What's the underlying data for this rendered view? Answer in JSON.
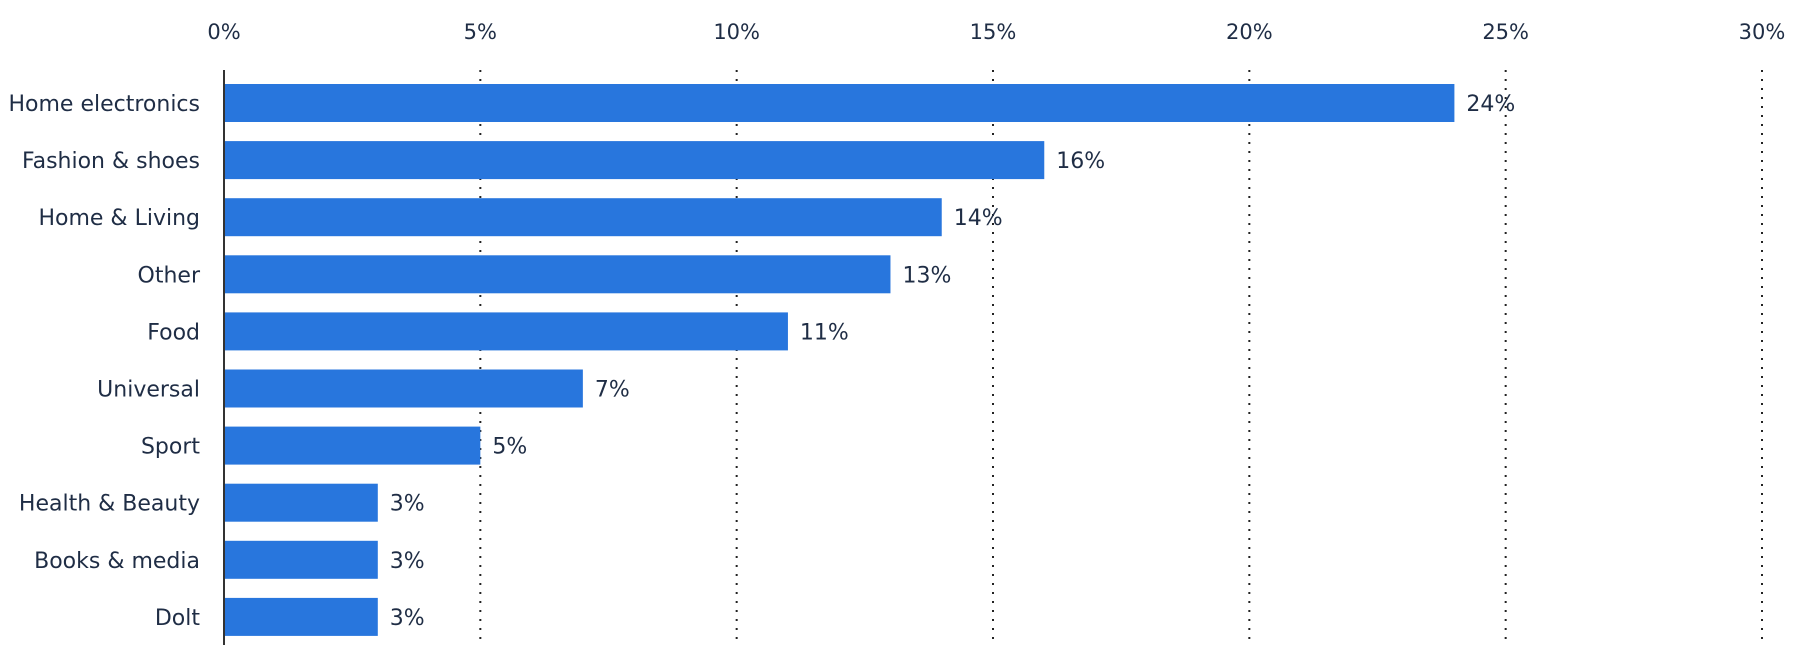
{
  "chart_data": {
    "type": "bar",
    "orientation": "horizontal",
    "title": "",
    "xlabel": "",
    "ylabel": "",
    "xlim": [
      0,
      30
    ],
    "x_ticks": [
      0,
      5,
      10,
      15,
      20,
      25,
      30
    ],
    "x_tick_labels": [
      "0%",
      "5%",
      "10%",
      "15%",
      "20%",
      "25%",
      "30%"
    ],
    "grid": "vertical dotted",
    "categories": [
      "Home electronics",
      "Fashion & shoes",
      "Home & Living",
      "Other",
      "Food",
      "Universal",
      "Sport",
      "Health & Beauty",
      "Books & media",
      "Dolt"
    ],
    "values": [
      24,
      16,
      14,
      13,
      11,
      7,
      5,
      3,
      3,
      3
    ],
    "data_labels": [
      "24%",
      "16%",
      "14%",
      "13%",
      "11%",
      "7%",
      "5%",
      "3%",
      "3%",
      "3%"
    ],
    "bar_color": "#2876dd"
  }
}
